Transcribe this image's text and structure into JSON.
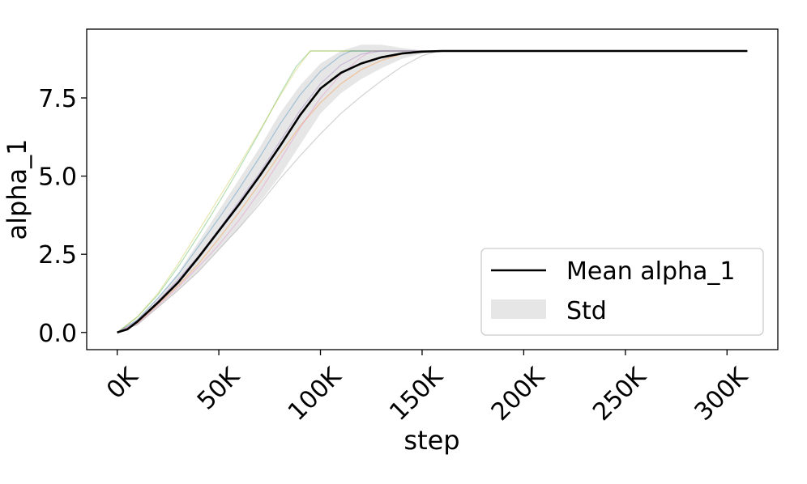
{
  "chart_data": {
    "type": "line",
    "xlabel": "step",
    "ylabel": "alpha_1",
    "xlim": [
      -15000,
      325000
    ],
    "ylim": [
      -0.55,
      9.7
    ],
    "x_ticks": [
      {
        "value": 0,
        "label": "0K"
      },
      {
        "value": 50000,
        "label": "50K"
      },
      {
        "value": 100000,
        "label": "100K"
      },
      {
        "value": 150000,
        "label": "150K"
      },
      {
        "value": 200000,
        "label": "200K"
      },
      {
        "value": 250000,
        "label": "250K"
      },
      {
        "value": 300000,
        "label": "300K"
      }
    ],
    "y_ticks": [
      {
        "value": 0,
        "label": "0.0"
      },
      {
        "value": 2.5,
        "label": "2.5"
      },
      {
        "value": 5.0,
        "label": "5.0"
      },
      {
        "value": 7.5,
        "label": "7.5"
      }
    ],
    "grid": false,
    "legend": {
      "position": "lower-right",
      "entries": [
        {
          "label": "Mean alpha_1",
          "kind": "line",
          "color": "#000000"
        },
        {
          "label": "Std",
          "kind": "patch",
          "color": "#e6e6e6"
        }
      ]
    },
    "mean": {
      "name": "Mean alpha_1",
      "color": "#000000",
      "x": [
        0,
        5000,
        10000,
        20000,
        30000,
        40000,
        50000,
        60000,
        70000,
        80000,
        90000,
        100000,
        110000,
        120000,
        130000,
        140000,
        150000,
        160000,
        200000,
        250000,
        310000
      ],
      "y": [
        0,
        0.1,
        0.35,
        0.95,
        1.6,
        2.4,
        3.25,
        4.1,
        5.0,
        5.95,
        6.95,
        7.8,
        8.3,
        8.6,
        8.8,
        8.92,
        8.98,
        9.0,
        9.0,
        9.0,
        9.0
      ]
    },
    "std_band": {
      "color": "#e6e6e6",
      "x": [
        0,
        10000,
        20000,
        30000,
        40000,
        50000,
        60000,
        70000,
        80000,
        90000,
        100000,
        110000,
        120000,
        130000,
        140000,
        150000,
        160000,
        310000
      ],
      "upper": [
        0,
        0.45,
        1.1,
        1.9,
        2.9,
        3.9,
        4.9,
        5.9,
        7.0,
        7.9,
        8.6,
        9.0,
        9.2,
        9.2,
        9.1,
        9.02,
        9.0,
        9.0
      ],
      "lower": [
        0,
        0.25,
        0.8,
        1.35,
        1.95,
        2.65,
        3.35,
        4.15,
        5.0,
        6.0,
        7.0,
        7.65,
        8.1,
        8.45,
        8.75,
        8.92,
        9.0,
        9.0
      ]
    },
    "runs": [
      {
        "color": "#2ca02c",
        "x": [
          0,
          10000,
          20000,
          30000,
          40000,
          50000,
          60000,
          70000,
          80000,
          88000,
          95000,
          310000
        ],
        "y": [
          0,
          0.5,
          1.2,
          2.1,
          3.1,
          4.15,
          5.25,
          6.4,
          7.6,
          8.5,
          9.0,
          9.0
        ]
      },
      {
        "color": "#bcbd22",
        "x": [
          0,
          10000,
          20000,
          30000,
          40000,
          50000,
          60000,
          70000,
          80000,
          88000,
          95000,
          310000
        ],
        "y": [
          0,
          0.5,
          1.25,
          2.2,
          3.25,
          4.3,
          5.35,
          6.45,
          7.55,
          8.4,
          9.0,
          9.0
        ]
      },
      {
        "color": "#1f77b4",
        "x": [
          0,
          10000,
          20000,
          30000,
          40000,
          50000,
          60000,
          70000,
          80000,
          90000,
          100000,
          110000,
          115000,
          310000
        ],
        "y": [
          0,
          0.4,
          1.1,
          1.85,
          2.75,
          3.65,
          4.6,
          5.6,
          6.65,
          7.6,
          8.35,
          8.85,
          9.0,
          9.0
        ]
      },
      {
        "color": "#ff7f0e",
        "x": [
          0,
          10000,
          20000,
          30000,
          40000,
          50000,
          60000,
          70000,
          80000,
          90000,
          100000,
          110000,
          120000,
          130000,
          140000,
          150000,
          310000
        ],
        "y": [
          0,
          0.3,
          0.9,
          1.5,
          2.2,
          3.0,
          3.85,
          4.75,
          5.7,
          6.6,
          7.35,
          7.95,
          8.4,
          8.7,
          8.9,
          9.0,
          9.0
        ]
      },
      {
        "color": "#e377c2",
        "x": [
          0,
          10000,
          20000,
          30000,
          40000,
          50000,
          60000,
          70000,
          80000,
          90000,
          100000,
          110000,
          120000,
          125000,
          310000
        ],
        "y": [
          0,
          0.3,
          0.85,
          1.45,
          2.1,
          2.8,
          3.6,
          4.5,
          5.5,
          6.55,
          7.5,
          8.25,
          8.8,
          9.0,
          9.0
        ]
      },
      {
        "color": "#7f7f7f",
        "x": [
          0,
          10000,
          20000,
          30000,
          40000,
          50000,
          60000,
          70000,
          80000,
          90000,
          100000,
          110000,
          120000,
          130000,
          140000,
          150000,
          158000,
          310000
        ],
        "y": [
          0,
          0.25,
          0.8,
          1.35,
          1.95,
          2.65,
          3.35,
          4.1,
          4.9,
          5.65,
          6.35,
          7.0,
          7.55,
          8.05,
          8.5,
          8.85,
          9.0,
          9.0
        ]
      },
      {
        "color": "#9467bd",
        "x": [
          0,
          10000,
          20000,
          30000,
          40000,
          50000,
          60000,
          70000,
          80000,
          90000,
          100000,
          110000,
          120000,
          130000,
          310000
        ],
        "y": [
          0,
          0.35,
          1.0,
          1.7,
          2.45,
          3.3,
          4.2,
          5.1,
          6.1,
          7.1,
          7.95,
          8.55,
          8.9,
          9.0,
          9.0
        ]
      }
    ]
  }
}
